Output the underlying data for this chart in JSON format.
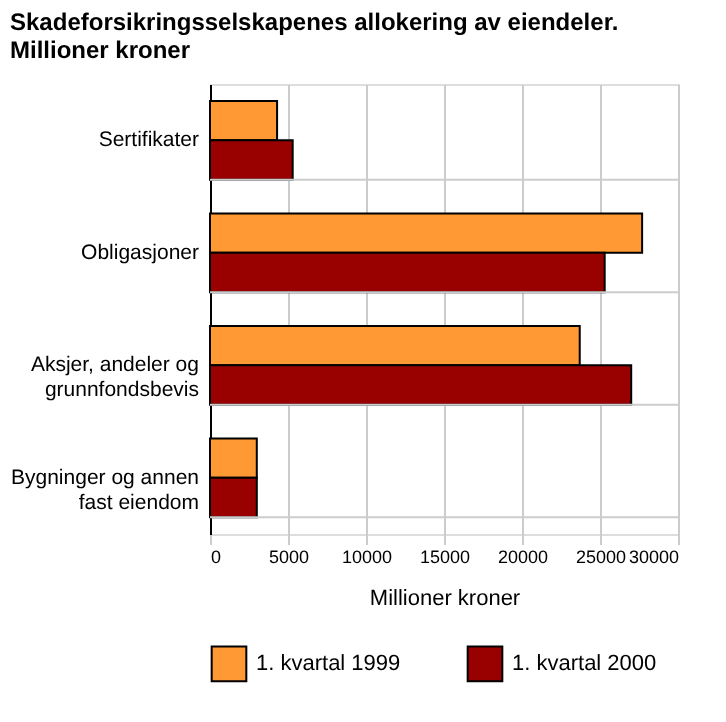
{
  "chart_data": {
    "type": "bar",
    "orientation": "horizontal",
    "title": "Skadeforsikringsselskapenes allokering av eiendeler.\nMillioner kroner",
    "xlabel": "Millioner kroner",
    "categories": [
      "Sertifikater",
      "Obligasjoner",
      "Aksjer, andeler og\ngrunnfondsbevis",
      "Bygninger og annen\nfast eiendom"
    ],
    "series": [
      {
        "name": "1. kvartal 1999",
        "color": "#ff9933",
        "values": [
          4300,
          27700,
          23700,
          3000
        ]
      },
      {
        "name": "1. kvartal 2000",
        "color": "#990000",
        "values": [
          5300,
          25300,
          27000,
          3000
        ]
      }
    ],
    "xlim": [
      0,
      30000
    ],
    "xticks": [
      0,
      5000,
      10000,
      15000,
      20000,
      25000,
      30000
    ],
    "grid": "x",
    "legend": "bottom"
  }
}
